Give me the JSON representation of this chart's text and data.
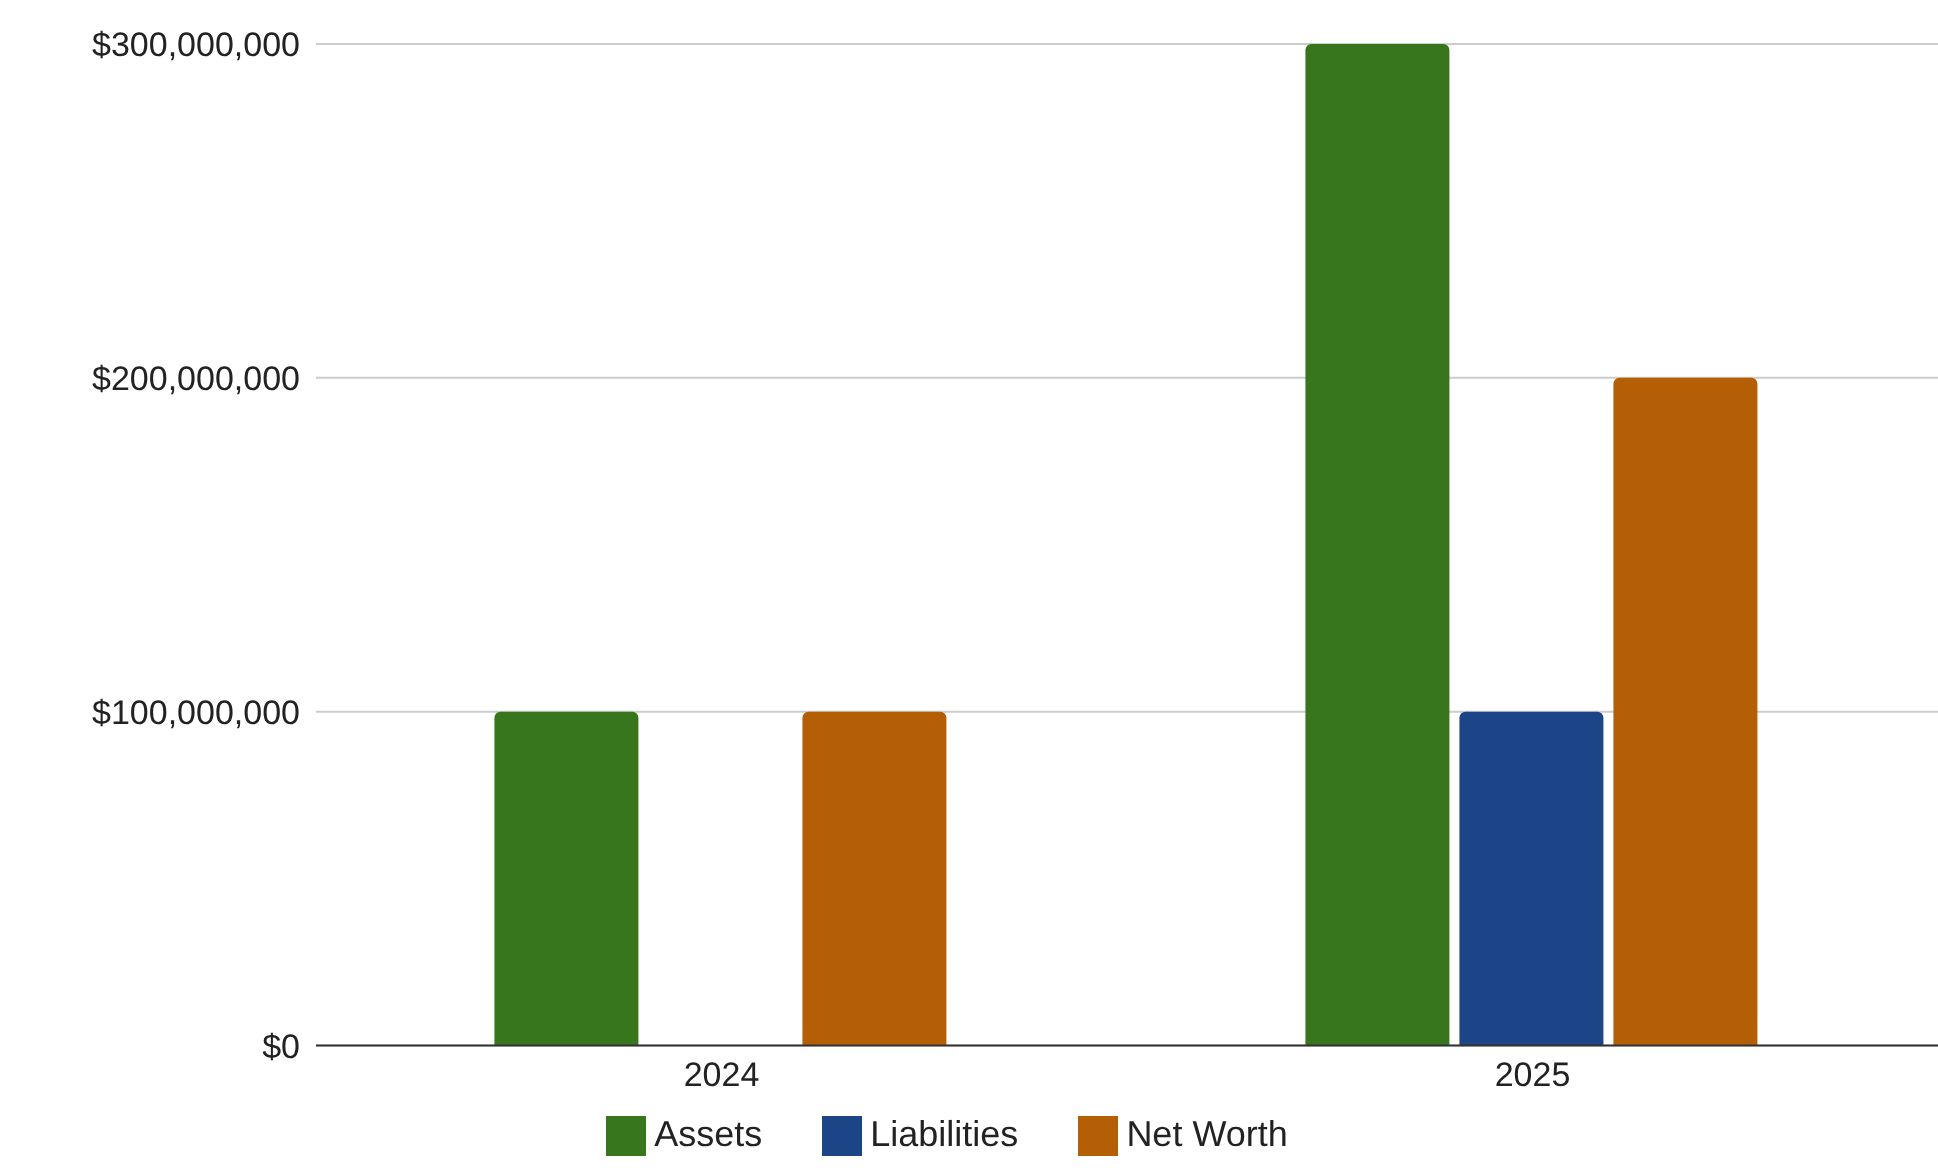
{
  "chart_data": {
    "type": "bar",
    "categories": [
      "2024",
      "2025"
    ],
    "series": [
      {
        "name": "Assets",
        "color": "#38761d",
        "values": [
          100000000,
          300000000
        ]
      },
      {
        "name": "Liabilities",
        "color": "#1c4587",
        "values": [
          0,
          100000000
        ]
      },
      {
        "name": "Net Worth",
        "color": "#b45f06",
        "values": [
          100000000,
          200000000
        ]
      }
    ],
    "ylim": [
      0,
      300000000
    ],
    "yticks": [
      {
        "value": 0,
        "label": "$0"
      },
      {
        "value": 100000000,
        "label": "$100,000,000"
      },
      {
        "value": 200000000,
        "label": "$200,000,000"
      },
      {
        "value": 300000000,
        "label": "$300,000,000"
      }
    ],
    "grid": "y",
    "legend": "bottom"
  }
}
